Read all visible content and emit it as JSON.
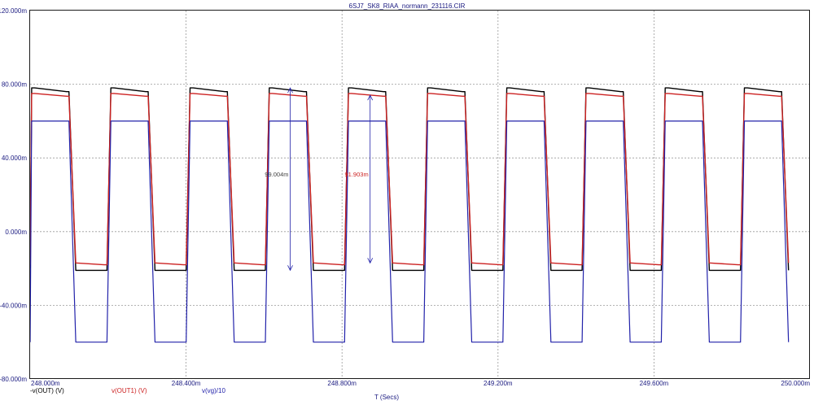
{
  "chart_data": {
    "type": "line",
    "title": "6SJ7_SK8_RIAA_normann_231116.CIR",
    "xlabel": "T (Secs)",
    "ylabel": "",
    "xlim": [
      248.0,
      250.0
    ],
    "ylim": [
      -80.0,
      120.0
    ],
    "grid": true,
    "x_ticks": [
      {
        "value": 248.0,
        "label": "248.000m"
      },
      {
        "value": 248.4,
        "label": "248.400m"
      },
      {
        "value": 248.8,
        "label": "248.800m"
      },
      {
        "value": 249.2,
        "label": "249.200m"
      },
      {
        "value": 249.6,
        "label": "249.600m"
      },
      {
        "value": 250.0,
        "label": "250.000m"
      }
    ],
    "y_ticks": [
      {
        "value": 120,
        "label": "120.000m"
      },
      {
        "value": 80,
        "label": "80.000m"
      },
      {
        "value": 40,
        "label": "40.000m"
      },
      {
        "value": 0,
        "label": "0.000m"
      },
      {
        "value": -40,
        "label": "-40.000m"
      },
      {
        "value": -80,
        "label": "-80.000m"
      }
    ],
    "series": [
      {
        "name": "-v(OUT) (V)",
        "color": "#000000",
        "high": 78.0,
        "high_end": 76.0,
        "low": -21.0,
        "low_end": -21.0,
        "period": 0.2031,
        "phase": 248.0,
        "start": -20.0
      },
      {
        "name": "v(OUT1) (V)",
        "color": "#cc2222",
        "high": 75.0,
        "high_end": 73.5,
        "low": -17.0,
        "low_end": -18.0,
        "period": 0.2031,
        "phase": 248.0,
        "start": -18.0
      },
      {
        "name": "v(vg)/10",
        "color": "#2222aa",
        "high": 60.0,
        "high_end": 60.0,
        "low": -60.0,
        "low_end": -60.0,
        "period": 0.2031,
        "phase": 248.0,
        "start": -60.0
      }
    ],
    "annotations": [
      {
        "text": "99.004m",
        "x": 248.667,
        "y_top": 78.0,
        "y_bottom": -21.0,
        "color": "#444444"
      },
      {
        "text": "91.903m",
        "x": 248.872,
        "y_top": 74.0,
        "y_bottom": -17.0,
        "color": "#cc2222"
      }
    ]
  }
}
